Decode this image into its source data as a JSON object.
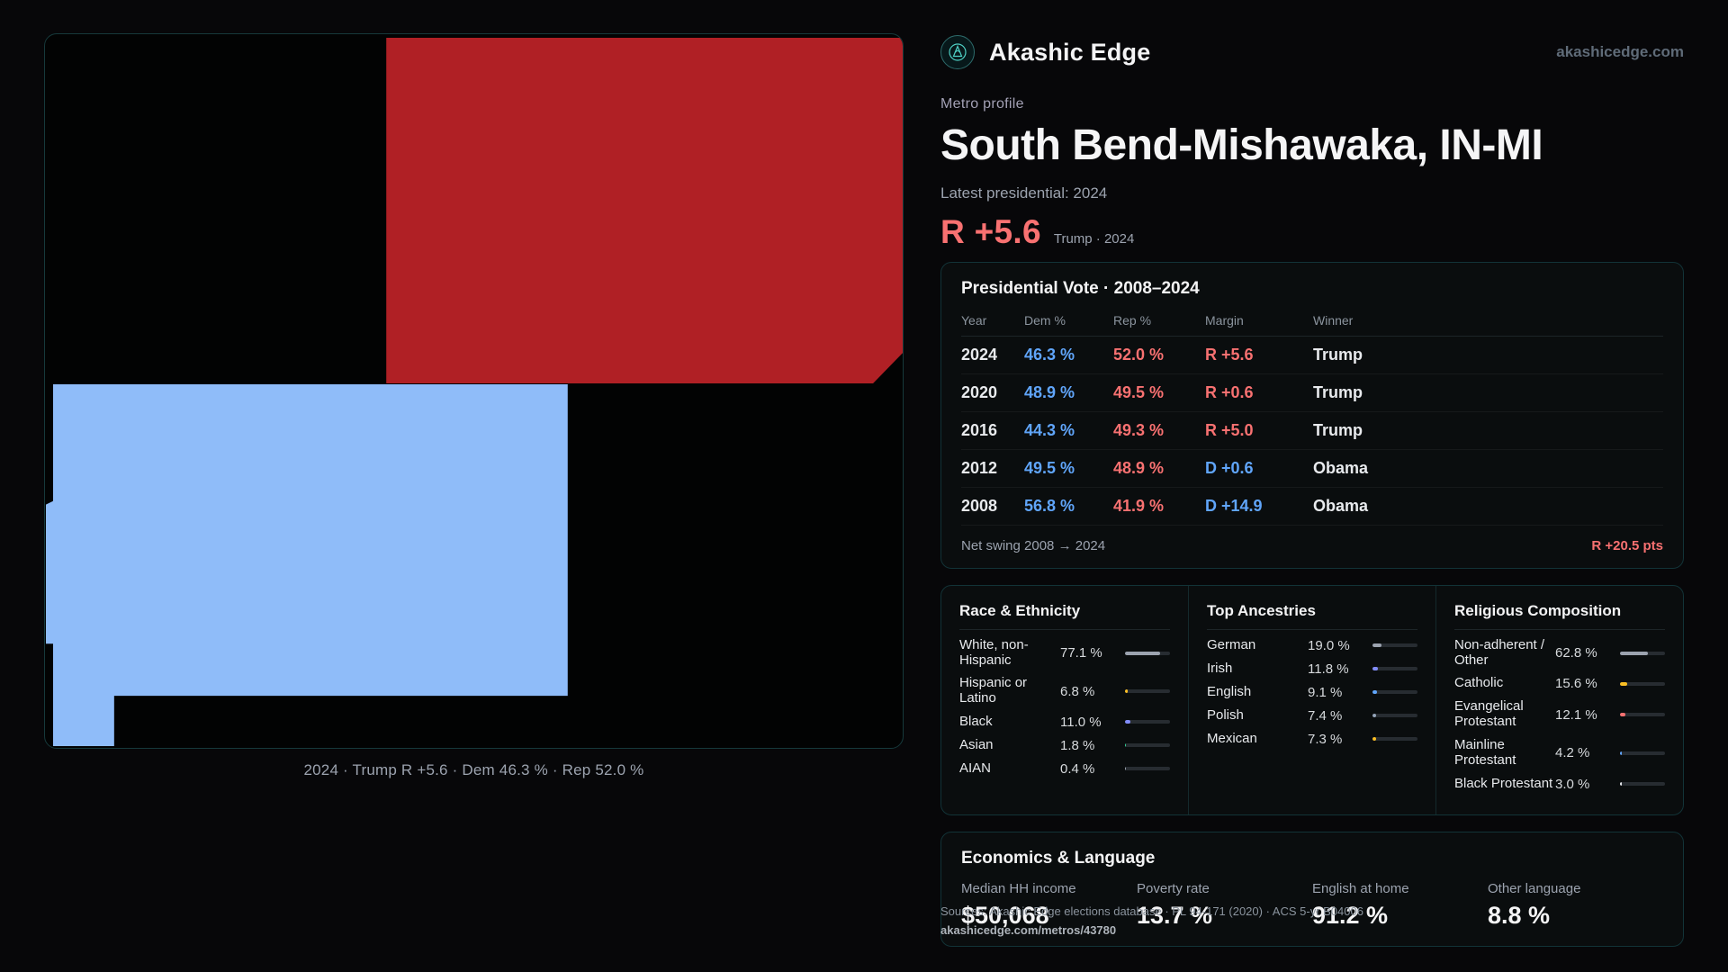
{
  "header": {
    "brand": "Akashic Edge",
    "site": "akashicedge.com"
  },
  "profile": {
    "kicker": "Metro profile",
    "title": "South Bend-Mishawaka, IN-MI",
    "latest_label": "Latest presidential: 2024",
    "headline_margin": "R +5.6",
    "headline_note": "Trump · 2024"
  },
  "map": {
    "caption": "2024 · Trump R +5.6 · Dem 46.3 % · Rep 52.0 %",
    "colors": {
      "rep_county": "#b02025",
      "dem_county": "#8fbcf9"
    }
  },
  "vote_table": {
    "title": "Presidential Vote · 2008–2024",
    "columns": [
      "Year",
      "Dem %",
      "Rep %",
      "Margin",
      "Winner"
    ],
    "rows": [
      {
        "year": "2024",
        "dem": "46.3 %",
        "rep": "52.0 %",
        "margin": "R +5.6",
        "margin_party": "R",
        "winner": "Trump"
      },
      {
        "year": "2020",
        "dem": "48.9 %",
        "rep": "49.5 %",
        "margin": "R +0.6",
        "margin_party": "R",
        "winner": "Trump"
      },
      {
        "year": "2016",
        "dem": "44.3 %",
        "rep": "49.3 %",
        "margin": "R +5.0",
        "margin_party": "R",
        "winner": "Trump"
      },
      {
        "year": "2012",
        "dem": "49.5 %",
        "rep": "48.9 %",
        "margin": "D +0.6",
        "margin_party": "D",
        "winner": "Obama"
      },
      {
        "year": "2008",
        "dem": "56.8 %",
        "rep": "41.9 %",
        "margin": "D +14.9",
        "margin_party": "D",
        "winner": "Obama"
      }
    ],
    "footer_label": "Net swing 2008 → 2024",
    "footer_value": "R +20.5 pts"
  },
  "demographics": {
    "race": {
      "title": "Race & Ethnicity",
      "rows": [
        {
          "label": "White, non-Hispanic",
          "value": "77.1 %",
          "pct": 77.1,
          "color": "#9ca3af"
        },
        {
          "label": "Hispanic or Latino",
          "value": "6.8 %",
          "pct": 6.8,
          "color": "#fbbf24"
        },
        {
          "label": "Black",
          "value": "11.0 %",
          "pct": 11.0,
          "color": "#818cf8"
        },
        {
          "label": "Asian",
          "value": "1.8 %",
          "pct": 1.8,
          "color": "#34d399"
        },
        {
          "label": "AIAN",
          "value": "0.4 %",
          "pct": 0.4,
          "color": "#9ca3af"
        }
      ]
    },
    "ancestries": {
      "title": "Top Ancestries",
      "rows": [
        {
          "label": "German",
          "value": "19.0 %",
          "pct": 19.0,
          "color": "#9ca3af"
        },
        {
          "label": "Irish",
          "value": "11.8 %",
          "pct": 11.8,
          "color": "#818cf8"
        },
        {
          "label": "English",
          "value": "9.1 %",
          "pct": 9.1,
          "color": "#60a5fa"
        },
        {
          "label": "Polish",
          "value": "7.4 %",
          "pct": 7.4,
          "color": "#94a3b8"
        },
        {
          "label": "Mexican",
          "value": "7.3 %",
          "pct": 7.3,
          "color": "#fbbf24"
        }
      ]
    },
    "religion": {
      "title": "Religious Composition",
      "rows": [
        {
          "label": "Non-adherent / Other",
          "value": "62.8 %",
          "pct": 62.8,
          "color": "#9ca3af"
        },
        {
          "label": "Catholic",
          "value": "15.6 %",
          "pct": 15.6,
          "color": "#fbbf24"
        },
        {
          "label": "Evangelical Protestant",
          "value": "12.1 %",
          "pct": 12.1,
          "color": "#f87171"
        },
        {
          "label": "Mainline Protestant",
          "value": "4.2 %",
          "pct": 4.2,
          "color": "#60a5fa"
        },
        {
          "label": "Black Protestant",
          "value": "3.0 %",
          "pct": 3.0,
          "color": "#e5e7eb"
        }
      ]
    }
  },
  "economics": {
    "title": "Economics & Language",
    "stats": [
      {
        "label": "Median HH income",
        "value": "$50,068"
      },
      {
        "label": "Poverty rate",
        "value": "13.7 %"
      },
      {
        "label": "English at home",
        "value": "91.2 %"
      },
      {
        "label": "Other language",
        "value": "8.8 %"
      }
    ]
  },
  "sources": {
    "line1": "Sources: Akashic Edge elections database · PL 94-171 (2020) · ACS 5-yr B04006",
    "line2": "akashicedge.com/metros/43780"
  }
}
